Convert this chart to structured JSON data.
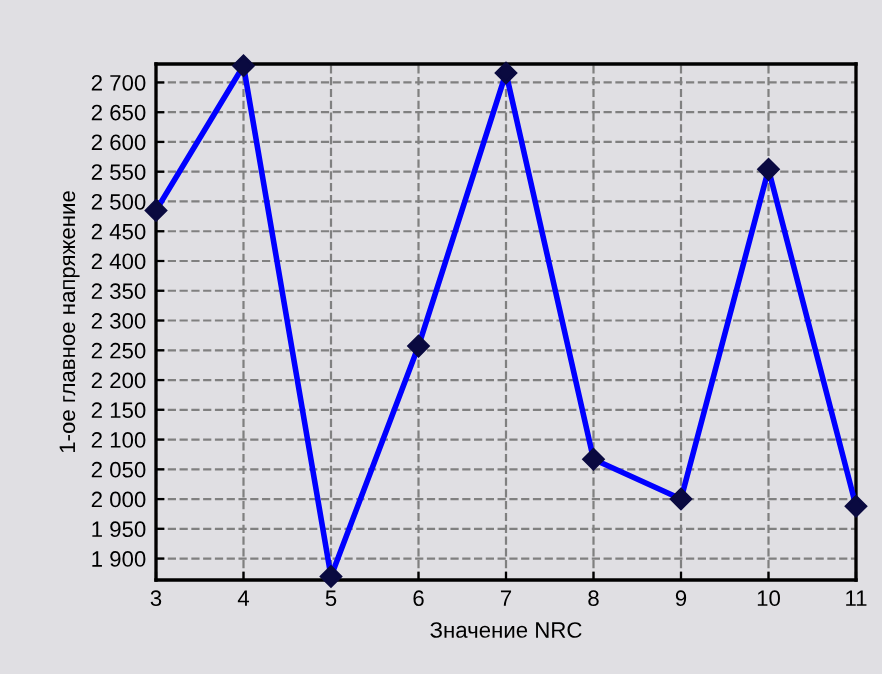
{
  "chart_data": {
    "type": "line",
    "xlabel": "Значение NRC",
    "ylabel": "1-ое главное напряжение",
    "x": [
      3,
      4,
      5,
      6,
      7,
      8,
      9,
      10,
      11
    ],
    "series": [
      {
        "color": "#0000ff",
        "values": [
          2485,
          2728,
          1870,
          2257,
          2716,
          2067,
          2000,
          2554,
          1988
        ]
      }
    ],
    "xlim": [
      3,
      11
    ],
    "xticks": [
      3,
      4,
      5,
      6,
      7,
      8,
      9,
      10,
      11
    ],
    "ylim": [
      1864,
      2731
    ],
    "yticks": [
      {
        "value": 1900,
        "label": "1 900"
      },
      {
        "value": 1950,
        "label": "1 950"
      },
      {
        "value": 2000,
        "label": "2 000"
      },
      {
        "value": 2050,
        "label": "2 050"
      },
      {
        "value": 2100,
        "label": "2 100"
      },
      {
        "value": 2150,
        "label": "2 150"
      },
      {
        "value": 2200,
        "label": "2 200"
      },
      {
        "value": 2250,
        "label": "2 250"
      },
      {
        "value": 2300,
        "label": "2 300"
      },
      {
        "value": 2350,
        "label": "2 350"
      },
      {
        "value": 2400,
        "label": "2 400"
      },
      {
        "value": 2450,
        "label": "2 450"
      },
      {
        "value": 2500,
        "label": "2 500"
      },
      {
        "value": 2550,
        "label": "2 550"
      },
      {
        "value": 2600,
        "label": "2 600"
      },
      {
        "value": 2650,
        "label": "2 650"
      },
      {
        "value": 2700,
        "label": "2 700"
      }
    ],
    "grid": true,
    "marker": "diamond",
    "line_style": "solid",
    "legend": false
  }
}
